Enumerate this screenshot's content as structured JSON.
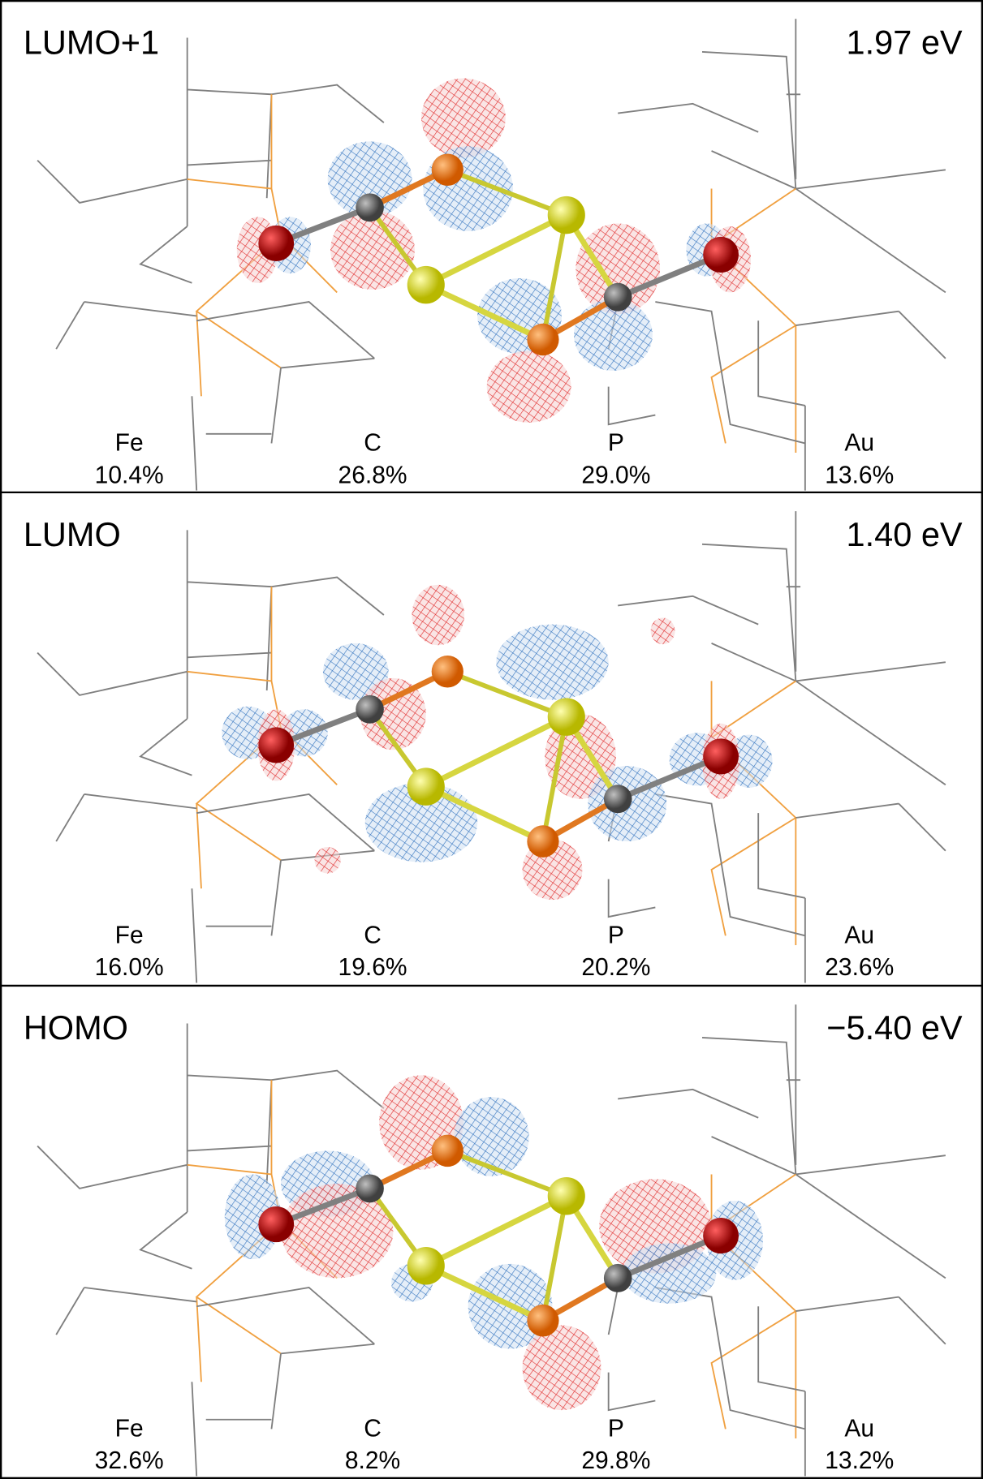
{
  "panels": [
    {
      "label": "LUMO+1",
      "energy": "1.97 eV",
      "contributions": [
        {
          "element": "Fe",
          "percent": "10.4%"
        },
        {
          "element": "C",
          "percent": "26.8%"
        },
        {
          "element": "P",
          "percent": "29.0%"
        },
        {
          "element": "Au",
          "percent": "13.6%"
        }
      ]
    },
    {
      "label": "LUMO",
      "energy": "1.40 eV",
      "contributions": [
        {
          "element": "Fe",
          "percent": "16.0%"
        },
        {
          "element": "C",
          "percent": "19.6%"
        },
        {
          "element": "P",
          "percent": "20.2%"
        },
        {
          "element": "Au",
          "percent": "23.6%"
        }
      ]
    },
    {
      "label": "HOMO",
      "energy": "−5.40 eV",
      "contributions": [
        {
          "element": "Fe",
          "percent": "32.6%"
        },
        {
          "element": "C",
          "percent": "8.2%"
        },
        {
          "element": "P",
          "percent": "29.8%"
        },
        {
          "element": "Au",
          "percent": "13.2%"
        }
      ]
    }
  ]
}
